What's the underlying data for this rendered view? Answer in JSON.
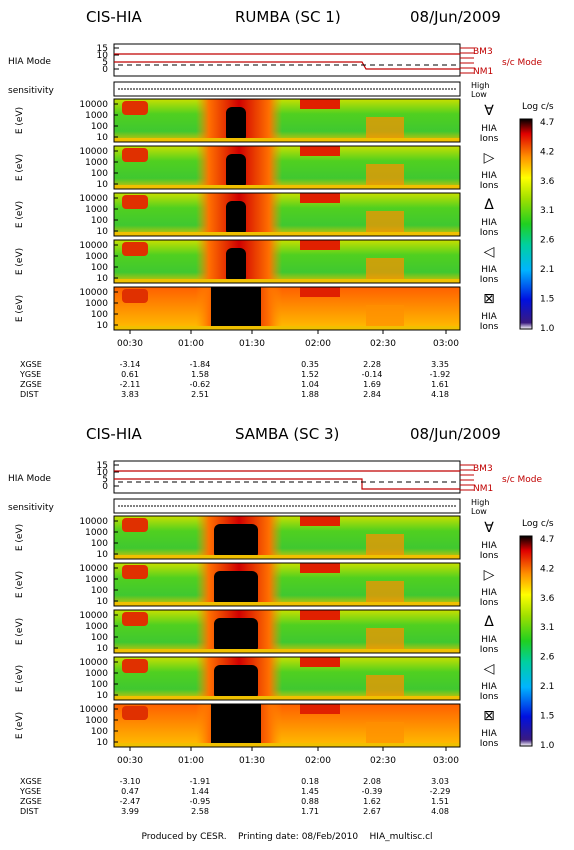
{
  "colors": {
    "modeLine": "#c00000",
    "axis": "#000000"
  },
  "colorbar": {
    "label": "Log c/s",
    "ticks": [
      "4.7",
      "4.2",
      "3.6",
      "3.1",
      "2.6",
      "2.1",
      "1.5",
      "1.0"
    ]
  },
  "mode_panel": {
    "label": "HIA Mode",
    "yticks": [
      "15",
      "10",
      "5",
      "0"
    ],
    "right_labels": [
      "BM3",
      "NM1"
    ],
    "sc_mode_label": "s/c Mode"
  },
  "sensitivity_panel": {
    "label": "sensitivity",
    "right_labels": [
      "High",
      "Low"
    ]
  },
  "spectro_ylabel": "E (eV)",
  "spectro_yticks": [
    "10000",
    "1000",
    "100",
    "10"
  ],
  "panel_right_label": [
    "HIA",
    "Ions"
  ],
  "direction_symbols": [
    "∀",
    "▷",
    "Δ",
    "◁",
    "⊠"
  ],
  "time_ticks": [
    "00:30",
    "01:00",
    "01:30",
    "02:00",
    "02:30",
    "03:00"
  ],
  "footer": {
    "produced_by": "Produced by CESR.",
    "printing_date": "Printing date: 08/Feb/2010",
    "filename": "HIA_multisc.cl"
  },
  "chart_data": [
    {
      "type": "heatmap",
      "instrument": "CIS-HIA",
      "spacecraft": "RUMBA (SC 1)",
      "date": "08/Jun/2009",
      "ylabel": "E (eV)",
      "colorbar_range": [
        1.0,
        4.7
      ],
      "orbit_rows": [
        {
          "name": "XGSE",
          "values": [
            "-3.14",
            "-1.84",
            "0.35",
            "2.28",
            "3.35"
          ]
        },
        {
          "name": "YGSE",
          "values": [
            "0.61",
            "1.58",
            "1.52",
            "-0.14",
            "-1.92"
          ]
        },
        {
          "name": "ZGSE",
          "values": [
            "-2.11",
            "-0.62",
            "1.04",
            "1.69",
            "1.61"
          ]
        },
        {
          "name": "DIST",
          "values": [
            "3.83",
            "2.51",
            "1.88",
            "2.84",
            "4.18"
          ]
        }
      ]
    },
    {
      "type": "heatmap",
      "instrument": "CIS-HIA",
      "spacecraft": "SAMBA (SC 3)",
      "date": "08/Jun/2009",
      "ylabel": "E (eV)",
      "colorbar_range": [
        1.0,
        4.7
      ],
      "orbit_rows": [
        {
          "name": "XGSE",
          "values": [
            "-3.10",
            "-1.91",
            "0.18",
            "2.08",
            "3.03"
          ]
        },
        {
          "name": "YGSE",
          "values": [
            "0.47",
            "1.44",
            "1.45",
            "-0.39",
            "-2.29"
          ]
        },
        {
          "name": "ZGSE",
          "values": [
            "-2.47",
            "-0.95",
            "0.88",
            "1.62",
            "1.51"
          ]
        },
        {
          "name": "DIST",
          "values": [
            "3.99",
            "2.58",
            "1.71",
            "2.67",
            "4.08"
          ]
        }
      ]
    }
  ]
}
